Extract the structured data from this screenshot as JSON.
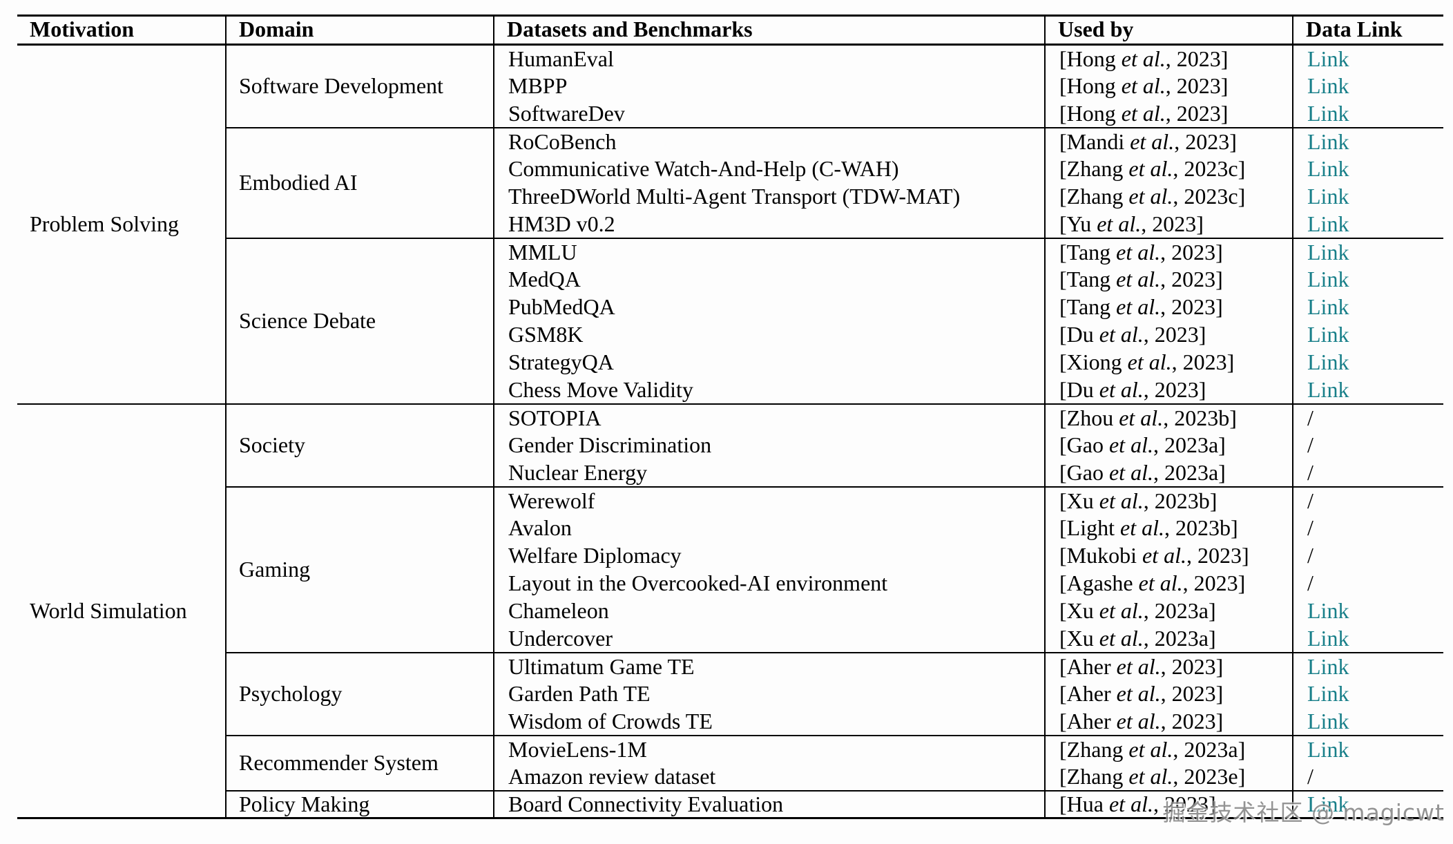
{
  "table": {
    "columns": [
      "Motivation",
      "Domain",
      "Datasets and Benchmarks",
      "Used by",
      "Data Link"
    ],
    "link_label": "Link",
    "no_link_label": "/",
    "link_color": "#187f89",
    "sections": [
      {
        "motivation": "Problem Solving",
        "groups": [
          {
            "domain": "Software Development",
            "rows": [
              {
                "dataset": "HumanEval",
                "used_by": "[Hong et al., 2023]",
                "link": "Link"
              },
              {
                "dataset": "MBPP",
                "used_by": "[Hong et al., 2023]",
                "link": "Link"
              },
              {
                "dataset": "SoftwareDev",
                "used_by": "[Hong et al., 2023]",
                "link": "Link"
              }
            ]
          },
          {
            "domain": "Embodied AI",
            "rows": [
              {
                "dataset": "RoCoBench",
                "used_by": "[Mandi et al., 2023]",
                "link": "Link"
              },
              {
                "dataset": "Communicative Watch-And-Help (C-WAH)",
                "used_by": "[Zhang et al., 2023c]",
                "link": "Link"
              },
              {
                "dataset": "ThreeDWorld Multi-Agent Transport (TDW-MAT)",
                "used_by": "[Zhang et al., 2023c]",
                "link": "Link"
              },
              {
                "dataset": "HM3D v0.2",
                "used_by": "[Yu et al., 2023]",
                "link": "Link"
              }
            ]
          },
          {
            "domain": "Science Debate",
            "rows": [
              {
                "dataset": "MMLU",
                "used_by": "[Tang et al., 2023]",
                "link": "Link"
              },
              {
                "dataset": "MedQA",
                "used_by": "[Tang et al., 2023]",
                "link": "Link"
              },
              {
                "dataset": "PubMedQA",
                "used_by": "[Tang et al., 2023]",
                "link": "Link"
              },
              {
                "dataset": "GSM8K",
                "used_by": "[Du et al., 2023]",
                "link": "Link"
              },
              {
                "dataset": "StrategyQA",
                "used_by": "[Xiong et al., 2023]",
                "link": "Link"
              },
              {
                "dataset": "Chess Move Validity",
                "used_by": "[Du et al., 2023]",
                "link": "Link"
              }
            ]
          }
        ]
      },
      {
        "motivation": "World Simulation",
        "groups": [
          {
            "domain": "Society",
            "rows": [
              {
                "dataset": "SOTOPIA",
                "used_by": "[Zhou et al., 2023b]",
                "link": "/"
              },
              {
                "dataset": "Gender Discrimination",
                "used_by": "[Gao et al., 2023a]",
                "link": "/"
              },
              {
                "dataset": "Nuclear Energy",
                "used_by": "[Gao et al., 2023a]",
                "link": "/"
              }
            ]
          },
          {
            "domain": "Gaming",
            "rows": [
              {
                "dataset": "Werewolf",
                "used_by": "[Xu et al., 2023b]",
                "link": "/"
              },
              {
                "dataset": "Avalon",
                "used_by": "[Light et al., 2023b]",
                "link": "/"
              },
              {
                "dataset": "Welfare Diplomacy",
                "used_by": "[Mukobi et al., 2023]",
                "link": "/"
              },
              {
                "dataset": "Layout in the Overcooked-AI environment",
                "used_by": "[Agashe et al., 2023]",
                "link": "/"
              },
              {
                "dataset": "Chameleon",
                "used_by": "[Xu et al., 2023a]",
                "link": "Link"
              },
              {
                "dataset": "Undercover",
                "used_by": "[Xu et al., 2023a]",
                "link": "Link"
              }
            ]
          },
          {
            "domain": "Psychology",
            "rows": [
              {
                "dataset": "Ultimatum Game TE",
                "used_by": "[Aher et al., 2023]",
                "link": "Link"
              },
              {
                "dataset": "Garden Path TE",
                "used_by": "[Aher et al., 2023]",
                "link": "Link"
              },
              {
                "dataset": "Wisdom of Crowds TE",
                "used_by": "[Aher et al., 2023]",
                "link": "Link"
              }
            ]
          },
          {
            "domain": "Recommender System",
            "rows": [
              {
                "dataset": "MovieLens-1M",
                "used_by": "[Zhang et al., 2023a]",
                "link": "Link"
              },
              {
                "dataset": "Amazon review dataset",
                "used_by": "[Zhang et al., 2023e]",
                "link": "/"
              }
            ]
          },
          {
            "domain": "Policy Making",
            "rows": [
              {
                "dataset": "Board Connectivity Evaluation",
                "used_by": "[Hua et al., 2023]",
                "link": "Link"
              }
            ]
          }
        ]
      }
    ]
  },
  "watermark": {
    "text": "掘金技术社区 @ magicwt"
  }
}
